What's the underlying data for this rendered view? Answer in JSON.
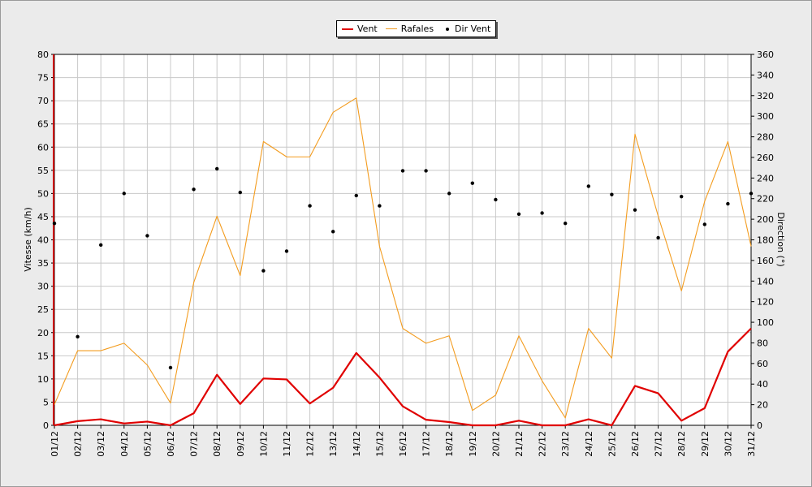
{
  "legend": {
    "items": [
      {
        "label": "Vent",
        "color": "#e00000",
        "kind": "line"
      },
      {
        "label": "Rafales",
        "color": "#f39c1f",
        "kind": "line"
      },
      {
        "label": "Dir Vent",
        "color": "#000000",
        "kind": "dot"
      }
    ]
  },
  "chart_data": {
    "type": "line",
    "title": "",
    "ylabel": "Vitesse (km/h)",
    "y2label": "Direction (°)",
    "ylim": [
      0,
      80
    ],
    "y2lim": [
      0,
      360
    ],
    "yticks": [
      0,
      5,
      10,
      15,
      20,
      25,
      30,
      35,
      40,
      45,
      50,
      55,
      60,
      65,
      70,
      75,
      80
    ],
    "y2ticks": [
      0,
      20,
      40,
      60,
      80,
      100,
      120,
      140,
      160,
      180,
      200,
      220,
      240,
      260,
      280,
      300,
      320,
      340,
      360
    ],
    "grid": true,
    "legend_position": "top-center",
    "categories": [
      "01/12",
      "02/12",
      "03/12",
      "04/12",
      "05/12",
      "06/12",
      "07/12",
      "08/12",
      "09/12",
      "10/12",
      "11/12",
      "12/12",
      "13/12",
      "14/12",
      "15/12",
      "16/12",
      "17/12",
      "18/12",
      "19/12",
      "20/12",
      "21/12",
      "22/12",
      "23/12",
      "24/12",
      "25/12",
      "26/12",
      "27/12",
      "28/12",
      "29/12",
      "30/12",
      "31/12"
    ],
    "series": [
      {
        "name": "Vent",
        "axis": "left",
        "style": "line",
        "color": "#e00000",
        "values": [
          0.0,
          0.9,
          1.3,
          0.4,
          0.8,
          0.0,
          2.6,
          10.9,
          4.6,
          10.1,
          9.9,
          4.7,
          8.1,
          15.6,
          10.3,
          4.1,
          1.2,
          0.7,
          0.0,
          0.0,
          1.0,
          0.0,
          0.0,
          1.3,
          0.0,
          8.5,
          6.9,
          1.0,
          3.7,
          15.9,
          20.9
        ]
      },
      {
        "name": "Rafales",
        "axis": "left",
        "style": "line",
        "color": "#f39c1f",
        "values": [
          4.5,
          16.1,
          16.1,
          17.7,
          13.0,
          4.8,
          30.8,
          45.1,
          32.3,
          61.2,
          57.9,
          57.9,
          67.5,
          70.6,
          38.6,
          20.9,
          17.7,
          19.3,
          3.2,
          6.5,
          19.3,
          9.6,
          1.6,
          20.9,
          14.5,
          62.8,
          45.1,
          29.0,
          48.3,
          61.2,
          38.6
        ]
      },
      {
        "name": "Dir Vent",
        "axis": "right",
        "style": "scatter",
        "color": "#000000",
        "values": [
          196,
          86,
          175,
          225,
          184,
          56,
          229,
          249,
          226,
          150,
          169,
          213,
          188,
          223,
          213,
          247,
          247,
          225,
          235,
          219,
          205,
          206,
          196,
          232,
          224,
          209,
          182,
          222,
          195,
          215,
          225
        ]
      }
    ]
  }
}
